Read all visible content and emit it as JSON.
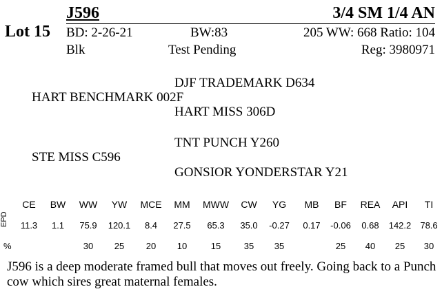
{
  "header": {
    "lot": "Lot 15",
    "id": "J596",
    "breed": "3/4 SM 1/4 AN",
    "bd": "BD: 2-26-21",
    "bw": "BW:83",
    "ww": "205 WW: 668 Ratio: 104",
    "color": "Blk",
    "status": "Test Pending",
    "reg": "Reg: 3980971"
  },
  "pedigree": {
    "sire": "HART BENCHMARK 002F",
    "sire_sire": "DJF TRADEMARK D634",
    "sire_dam": "HART MISS 306D",
    "dam": "STE MISS C596",
    "dam_sire": "TNT PUNCH Y260",
    "dam_dam": "GONSIOR YONDERSTAR Y21"
  },
  "epd": {
    "row_label": "EPD",
    "pct_label": "%",
    "columns": [
      "CE",
      "BW",
      "WW",
      "YW",
      "MCE",
      "MM",
      "MWW",
      "CW",
      "YG",
      "MB",
      "BF",
      "REA",
      "API",
      "TI"
    ],
    "values": [
      "11.3",
      "1.1",
      "75.9",
      "120.1",
      "8.4",
      "27.5",
      "65.3",
      "35.0",
      "-0.27",
      "0.17",
      "-0.06",
      "0.68",
      "142.2",
      "78.6"
    ],
    "percentiles": [
      "",
      "",
      "30",
      "25",
      "20",
      "10",
      "15",
      "35",
      "35",
      "",
      "25",
      "40",
      "25",
      "30"
    ]
  },
  "description": "J596 is a deep moderate framed bull that moves out freely.  Going back to a Punch cow which sires great maternal females."
}
